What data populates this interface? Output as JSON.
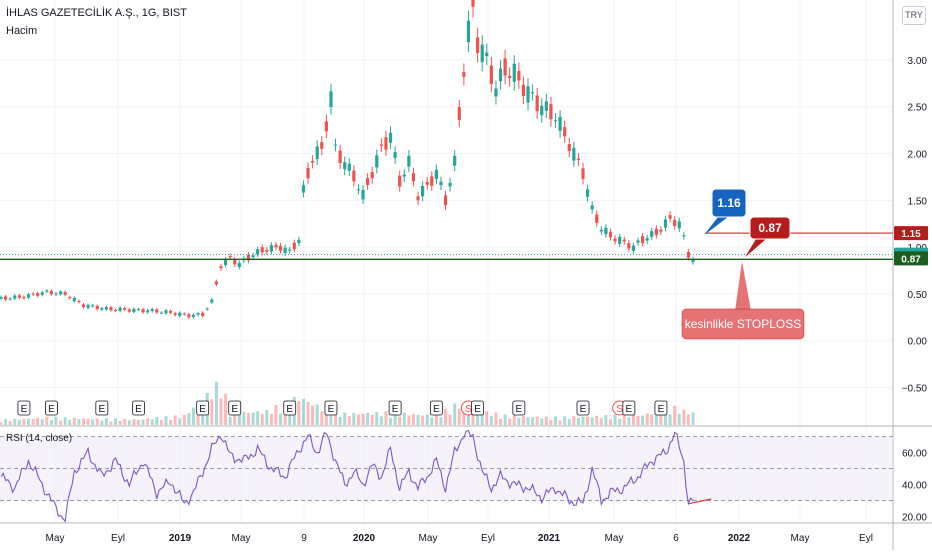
{
  "header": {
    "symbol": "İHLAS GAZETECİLİK A.Ş., 1G, BIST",
    "volume_label": "Hacim",
    "rsi_label": "RSI (14, close)",
    "currency": "TRY"
  },
  "colors": {
    "up": "#26a69a",
    "down": "#ef5350",
    "rsi_line": "#7e57c2",
    "rsi_band": "#ede7f6",
    "red_line": "#e53935",
    "dark_line": "#1b5e20",
    "callout_blue": "#1565c0",
    "callout_red": "#b71c1c",
    "callout_pink": "#e57373",
    "badge_red": "#b71c1c",
    "badge_teal": "#26a69a",
    "badge_dark": "#1b5e20"
  },
  "annotations": {
    "blue_callout": "1.16",
    "red_callout": "0.87",
    "stoploss_note": "kesinlikle STOPLOSS"
  },
  "price_badges": {
    "red": "1.15",
    "teal": "0.92",
    "dark": "0.87"
  },
  "chart_data": {
    "type": "candlestick",
    "time_axis": [
      "May",
      "Eyl",
      "2019",
      "May",
      "9",
      "2020",
      "May",
      "Eyl",
      "2021",
      "May",
      "6",
      "2022",
      "May",
      "Eyl"
    ],
    "price_axis": {
      "ticks": [
        "3.00",
        "2.50",
        "2.00",
        "1.50",
        "1.00",
        "0.50",
        "0.00",
        "−0.50"
      ],
      "values": [
        3.0,
        2.5,
        2.0,
        1.5,
        1.0,
        0.5,
        0.0,
        -0.5
      ],
      "ylim": [
        -0.9,
        3.64
      ]
    },
    "rsi_axis": {
      "ticks": [
        "60.00",
        "40.00",
        "20.00"
      ],
      "values": [
        60,
        40,
        20
      ],
      "ylim": [
        16,
        76
      ],
      "band": [
        30,
        70
      ]
    },
    "price_path": [
      [
        0,
        0.45
      ],
      [
        5,
        0.47
      ],
      [
        10,
        0.52
      ],
      [
        14,
        0.5
      ],
      [
        18,
        0.38
      ],
      [
        23,
        0.34
      ],
      [
        28,
        0.33
      ],
      [
        33,
        0.32
      ],
      [
        37,
        0.3
      ],
      [
        41,
        0.27
      ],
      [
        44,
        0.28
      ],
      [
        46,
        0.42
      ],
      [
        48,
        0.8
      ],
      [
        50,
        0.88
      ],
      [
        52,
        0.82
      ],
      [
        55,
        0.92
      ],
      [
        58,
        0.98
      ],
      [
        61,
        1.0
      ],
      [
        63,
        0.95
      ],
      [
        65,
        1.08
      ],
      [
        66,
        1.6
      ],
      [
        68,
        1.95
      ],
      [
        70,
        2.05
      ],
      [
        72,
        2.6
      ],
      [
        73,
        2.05
      ],
      [
        75,
        1.9
      ],
      [
        77,
        1.75
      ],
      [
        79,
        1.55
      ],
      [
        81,
        1.8
      ],
      [
        83,
        2.05
      ],
      [
        85,
        2.2
      ],
      [
        87,
        1.7
      ],
      [
        89,
        1.9
      ],
      [
        91,
        1.55
      ],
      [
        93,
        1.65
      ],
      [
        95,
        1.8
      ],
      [
        97,
        1.5
      ],
      [
        99,
        1.9
      ],
      [
        101,
        2.9
      ],
      [
        102,
        3.3
      ],
      [
        103,
        3.55
      ],
      [
        104,
        3.2
      ],
      [
        106,
        3.0
      ],
      [
        108,
        2.7
      ],
      [
        110,
        2.9
      ],
      [
        112,
        2.85
      ],
      [
        115,
        2.65
      ],
      [
        118,
        2.5
      ],
      [
        121,
        2.4
      ],
      [
        124,
        2.1
      ],
      [
        127,
        1.8
      ],
      [
        129,
        1.4
      ],
      [
        131,
        1.2
      ],
      [
        133,
        1.12
      ],
      [
        136,
        1.05
      ],
      [
        138,
        1.0
      ],
      [
        140,
        1.08
      ],
      [
        143,
        1.15
      ],
      [
        146,
        1.3
      ],
      [
        148,
        1.25
      ],
      [
        149,
        1.1
      ],
      [
        150,
        0.92
      ],
      [
        151,
        0.87
      ]
    ],
    "volume_path": [
      [
        0,
        0.08
      ],
      [
        10,
        0.12
      ],
      [
        20,
        0.1
      ],
      [
        30,
        0.09
      ],
      [
        40,
        0.15
      ],
      [
        46,
        0.55
      ],
      [
        48,
        0.7
      ],
      [
        50,
        0.2
      ],
      [
        58,
        0.22
      ],
      [
        65,
        0.45
      ],
      [
        70,
        0.28
      ],
      [
        75,
        0.18
      ],
      [
        85,
        0.2
      ],
      [
        95,
        0.15
      ],
      [
        100,
        0.35
      ],
      [
        103,
        0.25
      ],
      [
        110,
        0.15
      ],
      [
        120,
        0.12
      ],
      [
        130,
        0.14
      ],
      [
        140,
        0.16
      ],
      [
        146,
        0.3
      ],
      [
        150,
        0.2
      ]
    ],
    "rsi_path": [
      [
        0,
        45
      ],
      [
        3,
        38
      ],
      [
        6,
        55
      ],
      [
        9,
        40
      ],
      [
        12,
        25
      ],
      [
        14,
        18
      ],
      [
        16,
        48
      ],
      [
        19,
        60
      ],
      [
        22,
        45
      ],
      [
        25,
        55
      ],
      [
        28,
        40
      ],
      [
        31,
        55
      ],
      [
        34,
        35
      ],
      [
        37,
        42
      ],
      [
        40,
        28
      ],
      [
        42,
        35
      ],
      [
        44,
        48
      ],
      [
        46,
        62
      ],
      [
        48,
        72
      ],
      [
        50,
        58
      ],
      [
        53,
        55
      ],
      [
        56,
        62
      ],
      [
        59,
        50
      ],
      [
        62,
        45
      ],
      [
        65,
        62
      ],
      [
        67,
        70
      ],
      [
        69,
        60
      ],
      [
        71,
        72
      ],
      [
        73,
        55
      ],
      [
        75,
        40
      ],
      [
        77,
        48
      ],
      [
        79,
        40
      ],
      [
        81,
        52
      ],
      [
        83,
        45
      ],
      [
        85,
        62
      ],
      [
        87,
        38
      ],
      [
        89,
        48
      ],
      [
        91,
        38
      ],
      [
        93,
        45
      ],
      [
        95,
        55
      ],
      [
        97,
        38
      ],
      [
        99,
        60
      ],
      [
        101,
        72
      ],
      [
        103,
        70
      ],
      [
        105,
        48
      ],
      [
        107,
        38
      ],
      [
        109,
        45
      ],
      [
        112,
        40
      ],
      [
        115,
        38
      ],
      [
        118,
        32
      ],
      [
        121,
        38
      ],
      [
        124,
        30
      ],
      [
        127,
        28
      ],
      [
        129,
        50
      ],
      [
        131,
        30
      ],
      [
        133,
        35
      ],
      [
        136,
        38
      ],
      [
        139,
        45
      ],
      [
        142,
        55
      ],
      [
        145,
        60
      ],
      [
        147,
        72
      ],
      [
        149,
        55
      ],
      [
        150,
        28
      ],
      [
        151,
        30
      ]
    ],
    "events": [
      {
        "x": 5,
        "label": "E"
      },
      {
        "x": 11,
        "label": "E"
      },
      {
        "x": 22,
        "label": "E"
      },
      {
        "x": 30,
        "label": "E"
      },
      {
        "x": 44,
        "label": "E"
      },
      {
        "x": 51,
        "label": "E"
      },
      {
        "x": 63,
        "label": "E"
      },
      {
        "x": 72,
        "label": "E"
      },
      {
        "x": 86,
        "label": "E"
      },
      {
        "x": 95,
        "label": "E"
      },
      {
        "x": 102,
        "label": "S"
      },
      {
        "x": 104,
        "label": "E"
      },
      {
        "x": 113,
        "label": "E"
      },
      {
        "x": 127,
        "label": "E"
      },
      {
        "x": 135,
        "label": "S"
      },
      {
        "x": 137,
        "label": "E"
      },
      {
        "x": 144,
        "label": "E"
      }
    ],
    "price_lines": {
      "red": 1.15,
      "teal": 0.92,
      "dark": 0.87
    }
  }
}
